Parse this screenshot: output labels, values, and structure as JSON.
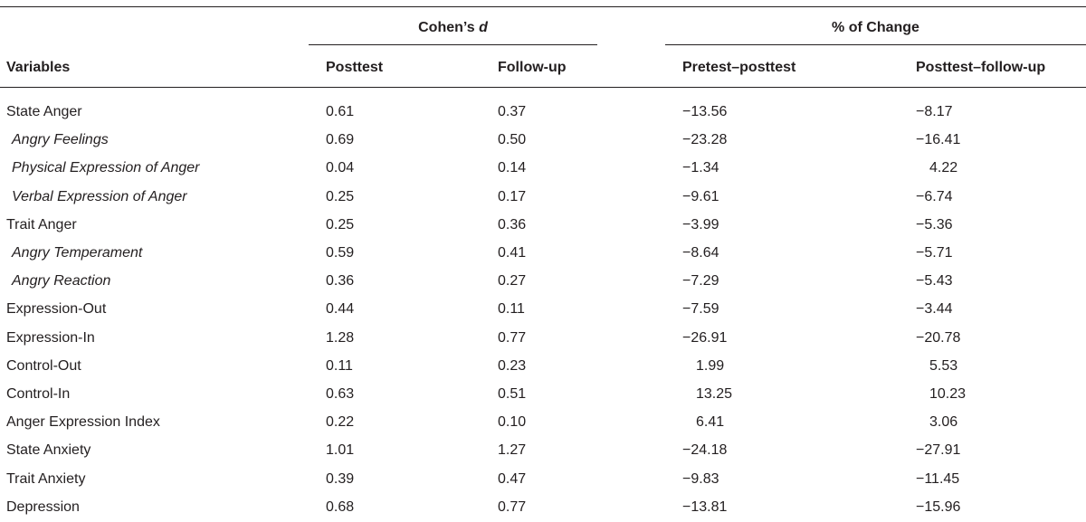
{
  "table": {
    "group_headers": {
      "cohens_d_prefix": "Cohen’s ",
      "cohens_d_symbol": "d",
      "pct_change": "% of Change"
    },
    "columns": {
      "variables": "Variables",
      "posttest": "Posttest",
      "followup": "Follow-up",
      "pre_post": "Pretest–posttest",
      "post_follow": "Posttest–follow-up"
    },
    "rows": [
      {
        "variable": "State Anger",
        "sub": false,
        "posttest": "0.61",
        "followup": "0.37",
        "pre_post": "−13.56",
        "post_follow": "−8.17"
      },
      {
        "variable": "Angry Feelings",
        "sub": true,
        "posttest": "0.69",
        "followup": "0.50",
        "pre_post": "−23.28",
        "post_follow": "−16.41"
      },
      {
        "variable": "Physical Expression of Anger",
        "sub": true,
        "posttest": "0.04",
        "followup": "0.14",
        "pre_post": "−1.34",
        "post_follow": "4.22"
      },
      {
        "variable": "Verbal Expression of Anger",
        "sub": true,
        "posttest": "0.25",
        "followup": "0.17",
        "pre_post": "−9.61",
        "post_follow": "−6.74"
      },
      {
        "variable": "Trait Anger",
        "sub": false,
        "posttest": "0.25",
        "followup": "0.36",
        "pre_post": "−3.99",
        "post_follow": "−5.36"
      },
      {
        "variable": "Angry Temperament",
        "sub": true,
        "posttest": "0.59",
        "followup": "0.41",
        "pre_post": "−8.64",
        "post_follow": "−5.71"
      },
      {
        "variable": "Angry Reaction",
        "sub": true,
        "posttest": "0.36",
        "followup": "0.27",
        "pre_post": "−7.29",
        "post_follow": "−5.43"
      },
      {
        "variable": "Expression-Out",
        "sub": false,
        "posttest": "0.44",
        "followup": "0.11",
        "pre_post": "−7.59",
        "post_follow": "−3.44"
      },
      {
        "variable": "Expression-In",
        "sub": false,
        "posttest": "1.28",
        "followup": "0.77",
        "pre_post": "−26.91",
        "post_follow": "−20.78"
      },
      {
        "variable": "Control-Out",
        "sub": false,
        "posttest": "0.11",
        "followup": "0.23",
        "pre_post": "1.99",
        "post_follow": "5.53"
      },
      {
        "variable": "Control-In",
        "sub": false,
        "posttest": "0.63",
        "followup": "0.51",
        "pre_post": "13.25",
        "post_follow": "10.23"
      },
      {
        "variable": "Anger Expression Index",
        "sub": false,
        "posttest": "0.22",
        "followup": "0.10",
        "pre_post": "6.41",
        "post_follow": "3.06"
      },
      {
        "variable": "State Anxiety",
        "sub": false,
        "posttest": "1.01",
        "followup": "1.27",
        "pre_post": "−24.18",
        "post_follow": "−27.91"
      },
      {
        "variable": "Trait Anxiety",
        "sub": false,
        "posttest": "0.39",
        "followup": "0.47",
        "pre_post": "−9.83",
        "post_follow": "−11.45"
      },
      {
        "variable": "Depression",
        "sub": false,
        "posttest": "0.68",
        "followup": "0.77",
        "pre_post": "−13.81",
        "post_follow": "−15.96"
      }
    ]
  }
}
